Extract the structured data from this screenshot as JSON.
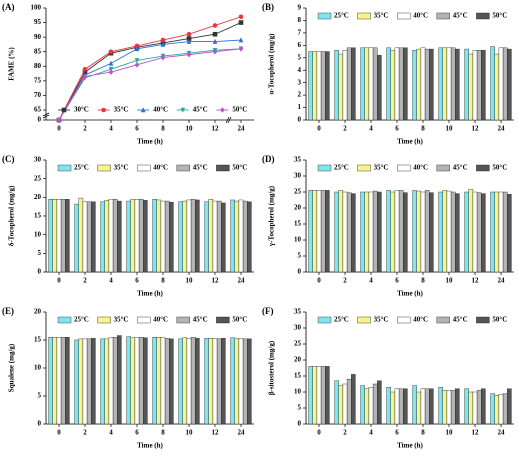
{
  "chart_data": [
    {
      "type": "line",
      "title": "(A)",
      "x_label": "Time (h)",
      "y_label": "FAME (%)",
      "categories": [
        "0",
        "2",
        "4",
        "6",
        "8",
        "10",
        "12",
        "24"
      ],
      "ylim": [
        0,
        100
      ],
      "ybreak": [
        0,
        65
      ],
      "yticks": [
        0,
        65,
        70,
        75,
        80,
        85,
        90,
        95,
        100
      ],
      "legend": "bottom",
      "series": [
        {
          "name": "30°C",
          "color": "#333333",
          "marker": "square",
          "values": [
            0,
            78,
            84.5,
            86.5,
            88,
            89.5,
            91,
            95
          ]
        },
        {
          "name": "35°C",
          "color": "#e8383d",
          "marker": "circle",
          "values": [
            0,
            79,
            85,
            87,
            89,
            91,
            94,
            97
          ]
        },
        {
          "name": "40°C",
          "color": "#2f6fd0",
          "marker": "triangle",
          "values": [
            0,
            77,
            81,
            86,
            87.5,
            88.5,
            88.5,
            89
          ]
        },
        {
          "name": "45°C",
          "color": "#2aa8a0",
          "marker": "triangle-down",
          "values": [
            0,
            76,
            79,
            82,
            83.5,
            84.5,
            85.5,
            86
          ]
        },
        {
          "name": "50°C",
          "color": "#c050c8",
          "marker": "diamond",
          "values": [
            0,
            76.5,
            78,
            80.5,
            83,
            84,
            85,
            86
          ]
        }
      ]
    },
    {
      "type": "bar",
      "title": "(B)",
      "x_label": "Time (h)",
      "y_label": "α-Tocopherol (mg/g)",
      "categories": [
        "0",
        "2",
        "4",
        "6",
        "8",
        "10",
        "12",
        "24"
      ],
      "ylim": [
        0,
        9
      ],
      "yticks": [
        0,
        1,
        2,
        3,
        4,
        5,
        6,
        7,
        8,
        9
      ],
      "legend": "top",
      "series": [
        {
          "name": "25°C",
          "color": "#7ee6ee",
          "values": [
            5.5,
            5.6,
            5.8,
            5.8,
            5.6,
            5.8,
            5.7,
            5.9
          ]
        },
        {
          "name": "35°C",
          "color": "#f6f48a",
          "values": [
            5.5,
            5.3,
            5.8,
            5.6,
            5.7,
            5.8,
            5.3,
            5.3
          ]
        },
        {
          "name": "40°C",
          "color": "#ffffff",
          "values": [
            5.5,
            5.6,
            5.8,
            5.8,
            5.8,
            5.8,
            5.6,
            5.8
          ]
        },
        {
          "name": "45°C",
          "color": "#b4b4b4",
          "values": [
            5.5,
            5.8,
            5.8,
            5.8,
            5.7,
            5.8,
            5.6,
            5.8
          ]
        },
        {
          "name": "50°C",
          "color": "#555555",
          "values": [
            5.5,
            5.8,
            5.2,
            5.8,
            5.7,
            5.7,
            5.6,
            5.7
          ]
        }
      ]
    },
    {
      "type": "bar",
      "title": "(C)",
      "x_label": "Time (h)",
      "y_label": "δ-Tocopherol (mg/g)",
      "categories": [
        "0",
        "2",
        "4",
        "6",
        "8",
        "10",
        "12",
        "24"
      ],
      "ylim": [
        0,
        30
      ],
      "yticks": [
        0,
        5,
        10,
        15,
        20,
        25,
        30
      ],
      "legend": "top",
      "series": [
        {
          "name": "25°C",
          "color": "#7ee6ee",
          "values": [
            19.5,
            18.2,
            18.8,
            19,
            19.5,
            18.8,
            18.8,
            19.3
          ]
        },
        {
          "name": "35°C",
          "color": "#f6f48a",
          "values": [
            19.5,
            19.8,
            19.2,
            19.5,
            19.3,
            19,
            19.5,
            19
          ]
        },
        {
          "name": "40°C",
          "color": "#ffffff",
          "values": [
            19.5,
            18.8,
            19.5,
            19.5,
            19,
            19.3,
            19,
            19.3
          ]
        },
        {
          "name": "45°C",
          "color": "#b4b4b4",
          "values": [
            19.5,
            18.8,
            19.5,
            19.5,
            19,
            19.5,
            19,
            19
          ]
        },
        {
          "name": "50°C",
          "color": "#555555",
          "values": [
            19.5,
            18.8,
            19,
            19.2,
            18.7,
            19.3,
            18.5,
            18.8
          ]
        }
      ]
    },
    {
      "type": "bar",
      "title": "(D)",
      "x_label": "Time (h)",
      "y_label": "γ-Tocopherol (mg/g)",
      "categories": [
        "0",
        "2",
        "4",
        "6",
        "8",
        "10",
        "12",
        "24"
      ],
      "ylim": [
        0,
        35
      ],
      "yticks": [
        0,
        5,
        10,
        15,
        20,
        25,
        30,
        35
      ],
      "legend": "top",
      "series": [
        {
          "name": "25°C",
          "color": "#7ee6ee",
          "values": [
            25.5,
            25,
            25,
            25.5,
            25.5,
            25,
            25,
            25
          ]
        },
        {
          "name": "35°C",
          "color": "#f6f48a",
          "values": [
            25.5,
            25.5,
            25,
            25,
            25.3,
            25.5,
            25.8,
            25
          ]
        },
        {
          "name": "40°C",
          "color": "#ffffff",
          "values": [
            25.5,
            25,
            25,
            25.5,
            25,
            25.3,
            25,
            25
          ]
        },
        {
          "name": "45°C",
          "color": "#b4b4b4",
          "values": [
            25.5,
            24.8,
            25.3,
            25.5,
            25.5,
            25,
            24.8,
            25
          ]
        },
        {
          "name": "50°C",
          "color": "#555555",
          "values": [
            25.5,
            24.5,
            25,
            24.8,
            24.8,
            24.5,
            24.5,
            24.3
          ]
        }
      ]
    },
    {
      "type": "bar",
      "title": "(E)",
      "x_label": "Time (h)",
      "y_label": "Squalene (mg/g)",
      "categories": [
        "0",
        "2",
        "4",
        "6",
        "8",
        "10",
        "12",
        "24"
      ],
      "ylim": [
        0,
        20
      ],
      "yticks": [
        0,
        5,
        10,
        15,
        20
      ],
      "legend": "top",
      "series": [
        {
          "name": "25°C",
          "color": "#7ee6ee",
          "values": [
            15.5,
            15,
            15.2,
            15.6,
            15.5,
            15.2,
            15.3,
            15.4
          ]
        },
        {
          "name": "35°C",
          "color": "#f6f48a",
          "values": [
            15.5,
            15.2,
            15.2,
            15.4,
            15.5,
            15.4,
            15.3,
            15.2
          ]
        },
        {
          "name": "40°C",
          "color": "#ffffff",
          "values": [
            15.5,
            15.2,
            15.4,
            15.4,
            15.4,
            15.3,
            15.3,
            15.3
          ]
        },
        {
          "name": "45°C",
          "color": "#b4b4b4",
          "values": [
            15.5,
            15.2,
            15.5,
            15.5,
            15.3,
            15.5,
            15.2,
            15.2
          ]
        },
        {
          "name": "50°C",
          "color": "#555555",
          "values": [
            15.5,
            15.3,
            15.8,
            15.4,
            15.2,
            15.3,
            15.3,
            15.2
          ]
        }
      ]
    },
    {
      "type": "bar",
      "title": "(F)",
      "x_label": "Time (h)",
      "y_label": "β-sitosterol (mg/g)",
      "categories": [
        "0",
        "2",
        "4",
        "6",
        "8",
        "10",
        "12",
        "24"
      ],
      "ylim": [
        0,
        35
      ],
      "yticks": [
        0,
        5,
        10,
        15,
        20,
        25,
        30,
        35
      ],
      "legend": "top",
      "series": [
        {
          "name": "25°C",
          "color": "#7ee6ee",
          "values": [
            18,
            13.5,
            12,
            11.5,
            12,
            11.5,
            11,
            9.5
          ]
        },
        {
          "name": "35°C",
          "color": "#f6f48a",
          "values": [
            18,
            12,
            11,
            10,
            10,
            10.5,
            10,
            9
          ]
        },
        {
          "name": "40°C",
          "color": "#ffffff",
          "values": [
            18,
            12.5,
            11.5,
            11,
            11,
            10.5,
            10,
            9.3
          ]
        },
        {
          "name": "45°C",
          "color": "#b4b4b4",
          "values": [
            18,
            14,
            12.5,
            11,
            11,
            10.5,
            10.5,
            9.5
          ]
        },
        {
          "name": "50°C",
          "color": "#555555",
          "values": [
            18,
            15.5,
            13.5,
            11,
            11,
            11,
            11,
            11
          ]
        }
      ]
    }
  ]
}
